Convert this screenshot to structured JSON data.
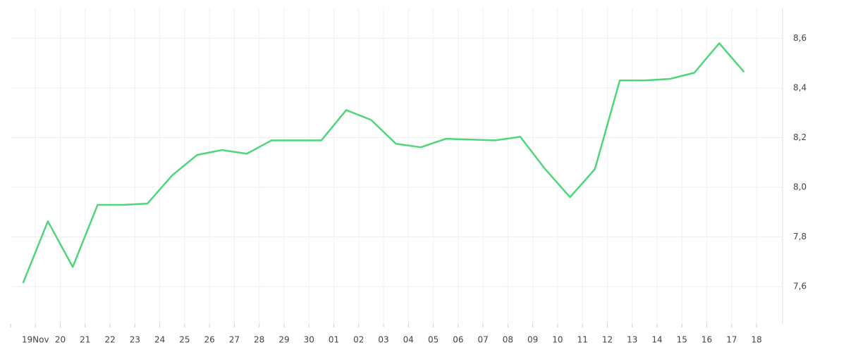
{
  "chart_data": {
    "type": "line",
    "categories": [
      "19Nov",
      "20",
      "21",
      "22",
      "23",
      "24",
      "25",
      "26",
      "27",
      "28",
      "29",
      "30",
      "01",
      "02",
      "03",
      "04",
      "05",
      "06",
      "07",
      "08",
      "09",
      "10",
      "11",
      "12",
      "13",
      "14",
      "15",
      "16",
      "17",
      "18"
    ],
    "series": [
      {
        "color": "#4fd67a",
        "values": [
          7.614,
          7.863,
          7.679,
          7.929,
          7.929,
          7.934,
          8.048,
          8.13,
          8.15,
          8.135,
          8.189,
          8.189,
          8.189,
          8.311,
          8.271,
          8.175,
          8.161,
          8.195,
          8.192,
          8.189,
          8.203,
          8.073,
          7.96,
          8.073,
          8.43,
          8.43,
          8.436,
          8.461,
          8.58,
          8.464
        ]
      }
    ],
    "ylim": [
      7.45,
      8.72
    ],
    "yticks": [
      {
        "value": 7.6,
        "label": "7,6"
      },
      {
        "value": 7.8,
        "label": "7,8"
      },
      {
        "value": 8.0,
        "label": "8,0"
      },
      {
        "value": 8.2,
        "label": "8,2"
      },
      {
        "value": 8.4,
        "label": "8,4"
      },
      {
        "value": 8.6,
        "label": "8,6"
      }
    ],
    "grid": true
  }
}
